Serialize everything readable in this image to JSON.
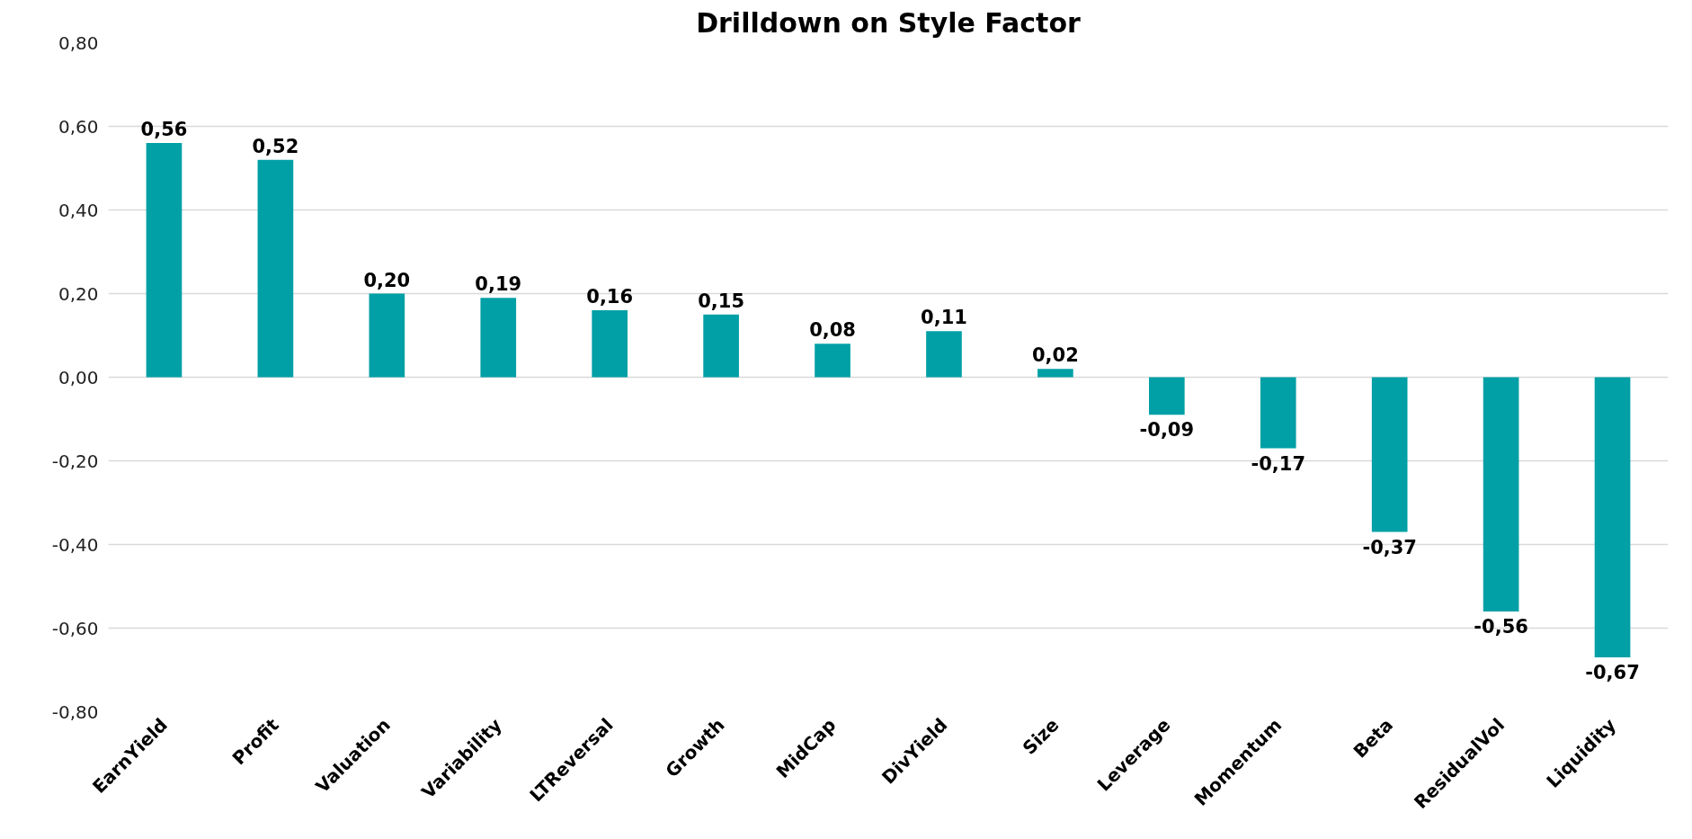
{
  "chart_data": {
    "type": "bar",
    "title": "Drilldown on Style Factor",
    "categories": [
      "EarnYield",
      "Profit",
      "Valuation",
      "Variability",
      "LTReversal",
      "Growth",
      "MidCap",
      "DivYield",
      "Size",
      "Leverage",
      "Momentum",
      "Beta",
      "ResidualVol",
      "Liquidity"
    ],
    "values": [
      0.56,
      0.52,
      0.2,
      0.19,
      0.16,
      0.15,
      0.08,
      0.11,
      0.02,
      -0.09,
      -0.17,
      -0.37,
      -0.56,
      -0.67
    ],
    "value_labels": [
      "0,56",
      "0,52",
      "0,20",
      "0,19",
      "0,16",
      "0,15",
      "0,08",
      "0,11",
      "0,02",
      "-0,09",
      "-0,17",
      "-0,37",
      "-0,56",
      "-0,67"
    ],
    "color": "#00a0a6",
    "ylim": [
      -0.8,
      0.8
    ],
    "yticks": [
      {
        "value": -0.8,
        "label": "-0,80"
      },
      {
        "value": -0.6,
        "label": "-0,60"
      },
      {
        "value": -0.4,
        "label": "-0,40"
      },
      {
        "value": -0.2,
        "label": "-0,20"
      },
      {
        "value": 0,
        "label": "0,00"
      },
      {
        "value": 0.2,
        "label": "0,20"
      },
      {
        "value": 0.4,
        "label": "0,40"
      },
      {
        "value": 0.6,
        "label": "0,60"
      },
      {
        "value": 0.8,
        "label": "0,80"
      }
    ],
    "grid": "y"
  }
}
